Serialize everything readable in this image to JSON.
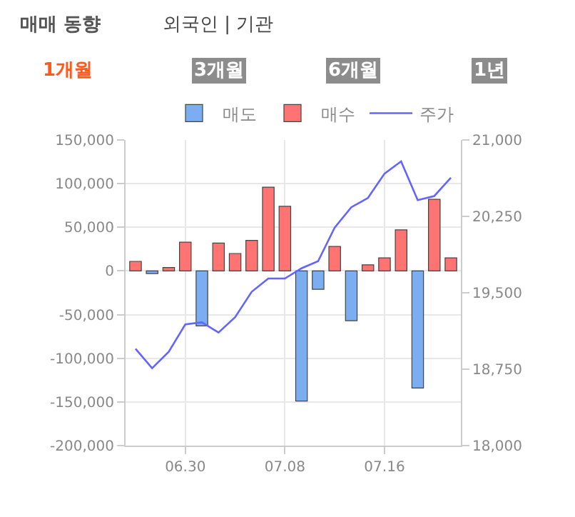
{
  "chart_data": {
    "type": "bar",
    "annotations": [
      "매매 동향",
      "외국인 | 기관",
      "1개월",
      "3개월",
      "6개월",
      "1년"
    ],
    "categories": [
      null,
      null,
      null,
      "06.30",
      null,
      null,
      null,
      null,
      null,
      "07.08",
      null,
      null,
      null,
      null,
      null,
      "07.16",
      null,
      null,
      null,
      null
    ],
    "series": [
      {
        "name": "매도",
        "color": "#7aaef0",
        "values": [
          null,
          -3000,
          null,
          null,
          -63000,
          null,
          null,
          null,
          null,
          null,
          -149000,
          -21000,
          null,
          -57000,
          null,
          null,
          null,
          -134000,
          null,
          null
        ]
      },
      {
        "name": "매수",
        "color": "#ff7373",
        "values": [
          11000,
          null,
          4000,
          33000,
          null,
          32000,
          20000,
          35000,
          96000,
          74000,
          null,
          null,
          28000,
          null,
          7000,
          15000,
          47000,
          null,
          82000,
          15000
        ]
      },
      {
        "name": "주가",
        "type": "line",
        "axis": "y2",
        "color": "#6464ff",
        "values": [
          18950,
          18760,
          18920,
          19190,
          19210,
          19110,
          19260,
          19510,
          19640,
          19640,
          19740,
          19810,
          20140,
          20340,
          20430,
          20670,
          20790,
          20410,
          20450,
          20630
        ]
      }
    ],
    "ylim": [
      -200000,
      150000
    ],
    "yticks": [
      {
        "value": -200000,
        "label": "-200,000"
      },
      {
        "value": -150000,
        "label": "-150,000"
      },
      {
        "value": -100000,
        "label": "-100,000"
      },
      {
        "value": -50000,
        "label": "-50,000"
      },
      0,
      {
        "value": 50000,
        "label": "50,000"
      },
      {
        "value": 100000,
        "label": "100,000"
      },
      {
        "value": 150000,
        "label": "150,000"
      }
    ],
    "y2lim": [
      18000,
      21000
    ],
    "y2ticks": [
      {
        "value": 18000,
        "label": "18,000"
      },
      {
        "value": 18750,
        "label": "18,750"
      },
      {
        "value": 19500,
        "label": "19,500"
      },
      {
        "value": 20250,
        "label": "20,250"
      },
      {
        "value": 21000,
        "label": "21,000"
      }
    ],
    "grid": true,
    "legend": "top right",
    "marker": "none"
  }
}
